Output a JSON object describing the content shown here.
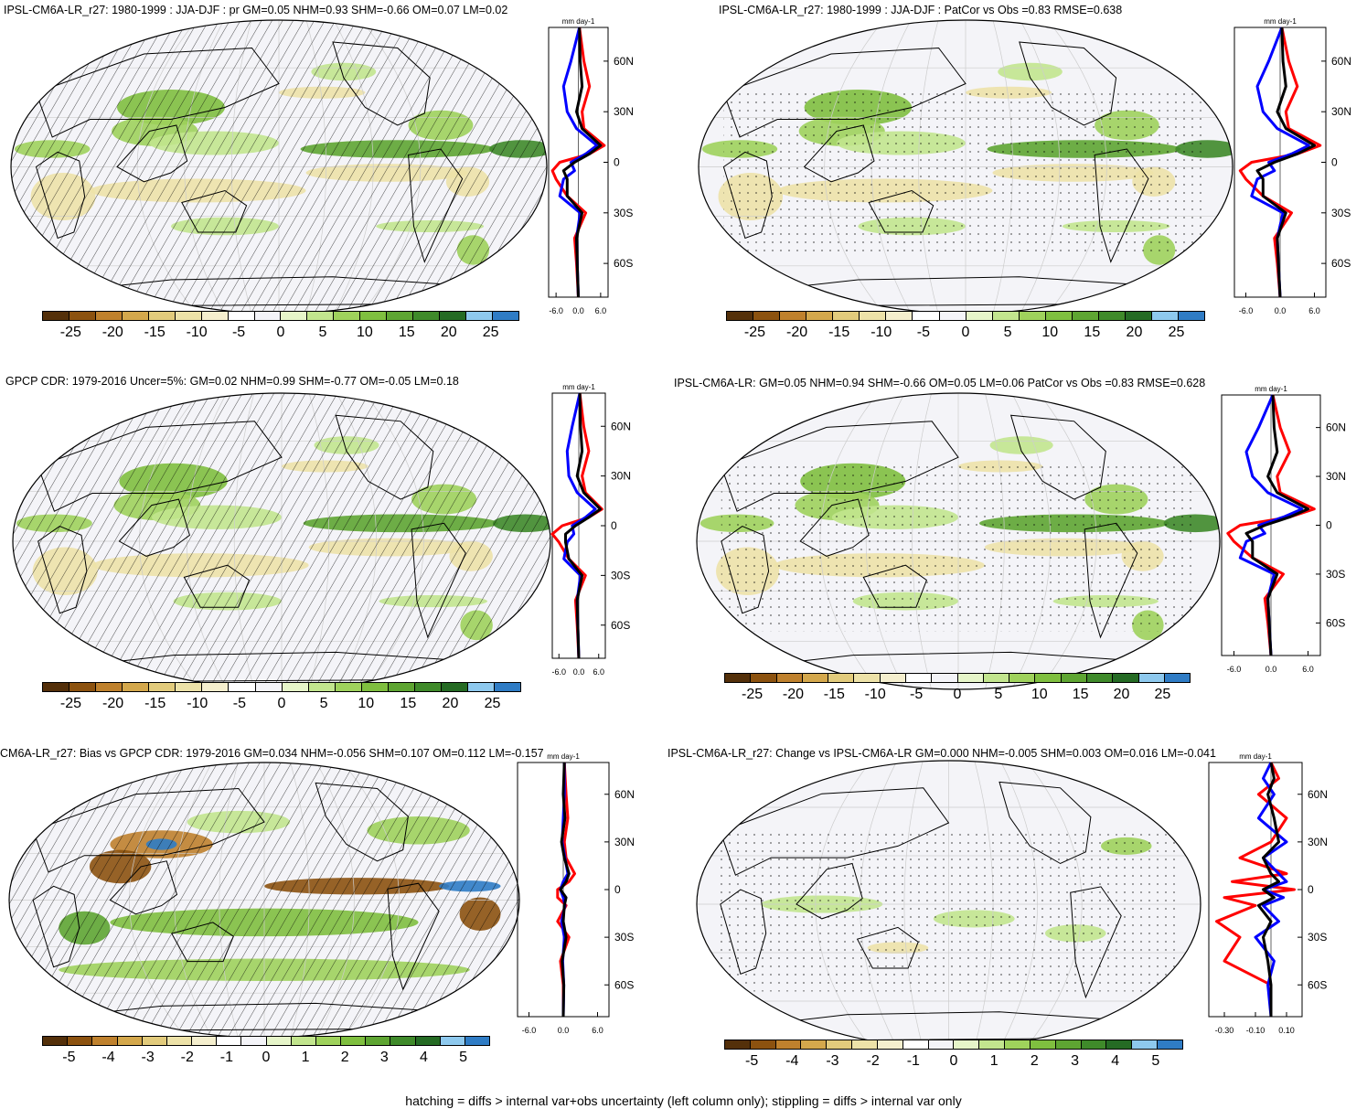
{
  "colorbar_colors": [
    "#54300a",
    "#8c520f",
    "#bf812d",
    "#d4a84c",
    "#e2cb7c",
    "#ede2a8",
    "#f5efce",
    "#ffffff",
    "#f4f4f8",
    "#e6f5c9",
    "#c2e58e",
    "#9fd25c",
    "#7fbf3f",
    "#5ea532",
    "#3f8a2a",
    "#256b24",
    "#8ec9ee",
    "#2f7cc5"
  ],
  "zonal_colors": {
    "model": "#000000",
    "obs": "#0000ff",
    "third": "#ff0000"
  },
  "footnote": "hatching = diffs > internal var+obs uncertainty (left column only); stippling = diffs > internal var only",
  "panels": [
    {
      "id": "model-hist",
      "title": "IPSL-CM6A-LR_r27: 1980-1999 : JJA-DJF : pr GM=0.05 NHM=0.93 SHM=-0.66 OM=0.07 LM=0.02",
      "hatching": true,
      "colorbar_labels": [
        "-25",
        "-20",
        "-15",
        "-10",
        "-5",
        "0",
        "5",
        "10",
        "15",
        "20",
        "25"
      ],
      "zonal": {
        "units": "mm day-1",
        "xticks": [
          "-6.0",
          "0.0",
          "6.0"
        ],
        "xlim": [
          -8,
          8
        ],
        "lat_labels": [
          "60N",
          "30N",
          "0",
          "30S",
          "60S"
        ]
      }
    },
    {
      "id": "model-patcor",
      "title": "IPSL-CM6A-LR_r27: 1980-1999 : JJA-DJF : PatCor vs Obs =0.83 RMSE=0.638",
      "hatching": false,
      "colorbar_labels": [
        "-25",
        "-20",
        "-15",
        "-10",
        "-5",
        "0",
        "5",
        "10",
        "15",
        "20",
        "25"
      ],
      "zonal": {
        "units": "mm day-1",
        "xticks": [
          "-6.0",
          "0.0",
          "6.0"
        ],
        "xlim": [
          -8,
          8
        ],
        "lat_labels": [
          "60N",
          "30N",
          "0",
          "30S",
          "60S"
        ]
      }
    },
    {
      "id": "gpcp",
      "title": "GPCP CDR: 1979-2016 Uncer=5%: GM=0.02 NHM=0.99 SHM=-0.77 OM=-0.05 LM=0.18",
      "hatching": true,
      "colorbar_labels": [
        "-25",
        "-20",
        "-15",
        "-10",
        "-5",
        "0",
        "5",
        "10",
        "15",
        "20",
        "25"
      ],
      "zonal": {
        "units": "mm day-1",
        "xticks": [
          "-6.0",
          "0.0",
          "6.0"
        ],
        "xlim": [
          -8,
          8
        ],
        "lat_labels": [
          "60N",
          "30N",
          "0",
          "30S",
          "60S"
        ]
      }
    },
    {
      "id": "ensemble",
      "title": "IPSL-CM6A-LR: GM=0.05 NHM=0.94 SHM=-0.66 OM=0.05 LM=0.06 PatCor vs Obs =0.83 RMSE=0.628",
      "hatching": false,
      "colorbar_labels": [
        "-25",
        "-20",
        "-15",
        "-10",
        "-5",
        "0",
        "5",
        "10",
        "15",
        "20",
        "25"
      ],
      "zonal": {
        "units": "mm day-1",
        "xticks": [
          "-6.0",
          "0.0",
          "6.0"
        ],
        "xlim": [
          -8,
          8
        ],
        "lat_labels": [
          "60N",
          "30N",
          "0",
          "30S",
          "60S"
        ]
      }
    },
    {
      "id": "bias",
      "title": "CM6A-LR_r27: Bias vs GPCP CDR: 1979-2016 GM=0.034 NHM=-0.056 SHM=0.107 OM=0.112 LM=-0.157",
      "hatching": true,
      "colorbar_labels": [
        "-5",
        "-4",
        "-3",
        "-2",
        "-1",
        "0",
        "1",
        "2",
        "3",
        "4",
        "5"
      ],
      "zonal": {
        "units": "mm day-1",
        "xticks": [
          "-6.0",
          "0.0",
          "6.0"
        ],
        "xlim": [
          -8,
          8
        ],
        "lat_labels": [
          "60N",
          "30N",
          "0",
          "30S",
          "60S"
        ]
      }
    },
    {
      "id": "change",
      "title": "IPSL-CM6A-LR_r27: Change vs IPSL-CM6A-LR GM=0.000 NHM=-0.005 SHM=0.003 OM=0.016 LM=-0.041",
      "hatching": false,
      "colorbar_labels": [
        "-5",
        "-4",
        "-3",
        "-2",
        "-1",
        "0",
        "1",
        "2",
        "3",
        "4",
        "5"
      ],
      "zonal": {
        "units": "mm day-1",
        "xticks": [
          "-0.30",
          "-0.10",
          "0.10"
        ],
        "xlim": [
          -0.4,
          0.2
        ],
        "lat_labels": [
          "60N",
          "30N",
          "0",
          "30S",
          "60S"
        ]
      }
    }
  ],
  "chart_data": [
    {
      "type": "line",
      "title": "IPSL-CM6A-LR_r27: 1980-1999 : JJA-DJF : pr GM=0.05 NHM=0.93 SHM=-0.66 OM=0.07 LM=0.02",
      "ylim": [
        -80,
        80
      ],
      "xlim": [
        -8,
        8
      ],
      "series": [
        {
          "lat": [
            80,
            60,
            45,
            30,
            20,
            10,
            5,
            0,
            -5,
            -10,
            -20,
            -30,
            -45,
            -60,
            -80
          ],
          "values": [
            0.3,
            0.5,
            1.0,
            -0.5,
            1.0,
            6.0,
            3.0,
            -1.0,
            -4.0,
            -3.0,
            -3.0,
            1.0,
            -0.5,
            -0.3,
            0.0
          ]
        },
        {
          "lat": [
            80,
            60,
            45,
            30,
            20,
            10,
            5,
            0,
            -5,
            -10,
            -20,
            -30,
            -45,
            -60,
            -80
          ],
          "values": [
            0.3,
            -2.0,
            -4.0,
            -3.0,
            -0.5,
            5.0,
            2.0,
            -2.0,
            -1.0,
            -4.0,
            -5.0,
            0.5,
            -0.5,
            -0.3,
            0.0
          ]
        },
        {
          "lat": [
            80,
            60,
            45,
            30,
            20,
            10,
            5,
            0,
            -5,
            -10,
            -20,
            -30,
            -45,
            -60,
            -80
          ],
          "values": [
            0.3,
            1.5,
            3.0,
            1.0,
            1.5,
            7.0,
            3.0,
            -5.0,
            -7.0,
            -6.0,
            -3.0,
            2.0,
            -1.0,
            -0.5,
            0.0
          ]
        }
      ]
    },
    {
      "type": "line",
      "title": "IPSL-CM6A-LR_r27: 1980-1999 : JJA-DJF : PatCor vs Obs =0.83 RMSE=0.638",
      "ylim": [
        -80,
        80
      ],
      "xlim": [
        -8,
        8
      ],
      "series": [
        {
          "lat": [
            80,
            60,
            45,
            30,
            20,
            10,
            5,
            0,
            -5,
            -10,
            -20,
            -30,
            -45,
            -60,
            -80
          ],
          "values": [
            0.3,
            0.5,
            1.0,
            -0.5,
            1.0,
            6.0,
            3.0,
            -1.0,
            -4.0,
            -3.0,
            -3.0,
            1.0,
            -0.5,
            -0.3,
            0.0
          ]
        },
        {
          "lat": [
            80,
            60,
            45,
            30,
            20,
            10,
            5,
            0,
            -5,
            -10,
            -20,
            -30,
            -45,
            -60,
            -80
          ],
          "values": [
            0.3,
            -2.0,
            -4.0,
            -3.0,
            -0.5,
            5.0,
            2.0,
            -2.0,
            -1.0,
            -4.0,
            -5.0,
            0.5,
            -0.5,
            -0.3,
            0.0
          ]
        },
        {
          "lat": [
            80,
            60,
            45,
            30,
            20,
            10,
            5,
            0,
            -5,
            -10,
            -20,
            -30,
            -45,
            -60,
            -80
          ],
          "values": [
            0.3,
            1.5,
            3.0,
            1.0,
            1.5,
            7.0,
            3.0,
            -5.0,
            -7.0,
            -6.0,
            -3.0,
            2.0,
            -1.0,
            -0.5,
            0.0
          ]
        }
      ]
    },
    {
      "type": "line",
      "title": "GPCP CDR: 1979-2016 Uncer=5%: GM=0.02 NHM=0.99 SHM=-0.77 OM=-0.05 LM=0.18",
      "ylim": [
        -80,
        80
      ],
      "xlim": [
        -8,
        8
      ],
      "series": [
        {
          "lat": [
            80,
            60,
            45,
            30,
            20,
            10,
            5,
            0,
            -5,
            -10,
            -20,
            -30,
            -45,
            -60,
            -80
          ],
          "values": [
            0.3,
            0.5,
            1.0,
            -0.5,
            1.5,
            6.5,
            3.0,
            -1.0,
            -4.0,
            -4.0,
            -3.0,
            1.0,
            -0.5,
            -0.3,
            0.0
          ]
        },
        {
          "lat": [
            80,
            60,
            45,
            30,
            20,
            10,
            5,
            0,
            -5,
            -10,
            -20,
            -30,
            -45,
            -60,
            -80
          ],
          "values": [
            0.3,
            -2.0,
            -3.5,
            -3.0,
            -0.5,
            5.0,
            2.0,
            -2.0,
            -1.5,
            -3.5,
            -4.5,
            0.5,
            -0.5,
            -0.3,
            0.0
          ]
        },
        {
          "lat": [
            80,
            60,
            45,
            30,
            20,
            10,
            5,
            0,
            -5,
            -10,
            -20,
            -30,
            -45,
            -60,
            -80
          ],
          "values": [
            0.3,
            1.5,
            3.0,
            1.0,
            2.0,
            7.0,
            3.0,
            -5.0,
            -8.0,
            -6.0,
            -3.0,
            2.0,
            -1.0,
            -0.5,
            0.0
          ]
        }
      ]
    },
    {
      "type": "line",
      "title": "IPSL-CM6A-LR: GM=0.05 NHM=0.94 SHM=-0.66 OM=0.05 LM=0.06 PatCor vs Obs =0.83 RMSE=0.628",
      "ylim": [
        -80,
        80
      ],
      "xlim": [
        -8,
        8
      ],
      "series": [
        {
          "lat": [
            80,
            60,
            45,
            30,
            20,
            10,
            5,
            0,
            -5,
            -10,
            -20,
            -30,
            -45,
            -60,
            -80
          ],
          "values": [
            0.3,
            0.5,
            1.0,
            -0.5,
            1.0,
            6.0,
            3.0,
            -1.0,
            -4.0,
            -3.0,
            -3.0,
            1.0,
            -0.5,
            -0.3,
            0.0
          ]
        },
        {
          "lat": [
            80,
            60,
            45,
            30,
            20,
            10,
            5,
            0,
            -5,
            -10,
            -20,
            -30,
            -45,
            -60,
            -80
          ],
          "values": [
            0.3,
            -2.0,
            -4.0,
            -3.0,
            -0.5,
            5.0,
            2.0,
            -2.0,
            -1.0,
            -4.0,
            -5.0,
            0.5,
            -0.5,
            -0.3,
            0.0
          ]
        },
        {
          "lat": [
            80,
            60,
            45,
            30,
            20,
            10,
            5,
            0,
            -5,
            -10,
            -20,
            -30,
            -45,
            -60,
            -80
          ],
          "values": [
            0.3,
            1.5,
            3.0,
            1.0,
            1.5,
            7.0,
            3.0,
            -5.0,
            -7.0,
            -6.0,
            -3.0,
            2.0,
            -1.0,
            -0.5,
            0.0
          ]
        }
      ]
    },
    {
      "type": "line",
      "title": "CM6A-LR_r27: Bias vs GPCP CDR: 1979-2016 GM=0.034 NHM=-0.056 SHM=0.107 OM=0.112 LM=-0.157",
      "ylim": [
        -80,
        80
      ],
      "xlim": [
        -8,
        8
      ],
      "series": [
        {
          "lat": [
            80,
            60,
            45,
            30,
            20,
            10,
            5,
            0,
            -5,
            -10,
            -20,
            -30,
            -45,
            -60,
            -80
          ],
          "values": [
            0.2,
            0.0,
            0.3,
            -0.3,
            0.2,
            1.0,
            0.5,
            -0.5,
            0.5,
            0.2,
            0.0,
            0.5,
            -0.2,
            0.1,
            0.0
          ]
        },
        {
          "lat": [
            80,
            60,
            45,
            30,
            20,
            10,
            5,
            0,
            -5,
            -10,
            -20,
            -30,
            -45,
            -60,
            -80
          ],
          "values": [
            0.2,
            0.2,
            0.0,
            -0.2,
            0.3,
            0.8,
            0.0,
            -0.5,
            0.0,
            0.3,
            -0.3,
            0.2,
            -0.1,
            0.1,
            0.0
          ]
        },
        {
          "lat": [
            80,
            60,
            45,
            30,
            20,
            10,
            5,
            0,
            -5,
            -10,
            -20,
            -30,
            -45,
            -60,
            -80
          ],
          "values": [
            0.2,
            0.5,
            0.8,
            0.2,
            0.5,
            2.0,
            1.0,
            -1.0,
            -1.0,
            0.5,
            -1.0,
            1.0,
            -0.5,
            0.0,
            0.0
          ]
        }
      ]
    },
    {
      "type": "line",
      "title": "IPSL-CM6A-LR_r27: Change vs IPSL-CM6A-LR GM=0.000 NHM=-0.005 SHM=0.003 OM=0.016 LM=-0.041",
      "ylim": [
        -80,
        80
      ],
      "xlim": [
        -0.4,
        0.2
      ],
      "series": [
        {
          "lat": [
            80,
            70,
            60,
            45,
            30,
            20,
            10,
            5,
            0,
            -5,
            -10,
            -20,
            -30,
            -45,
            -60,
            -80
          ],
          "values": [
            0.0,
            0.02,
            -0.02,
            0.02,
            0.05,
            -0.05,
            0.0,
            0.05,
            -0.05,
            0.02,
            -0.08,
            0.0,
            -0.05,
            -0.02,
            0.0,
            0.0
          ]
        },
        {
          "lat": [
            80,
            70,
            60,
            45,
            30,
            20,
            10,
            5,
            0,
            -5,
            -10,
            -20,
            -30,
            -45,
            -60,
            -80
          ],
          "values": [
            0.0,
            -0.05,
            0.02,
            -0.08,
            0.1,
            -0.05,
            0.05,
            0.1,
            -0.05,
            0.08,
            -0.05,
            0.05,
            -0.1,
            0.02,
            -0.02,
            0.0
          ]
        },
        {
          "lat": [
            80,
            70,
            60,
            45,
            30,
            20,
            10,
            5,
            0,
            -5,
            -10,
            -20,
            -30,
            -45,
            -60,
            -80
          ],
          "values": [
            0.0,
            0.05,
            -0.08,
            0.1,
            0.0,
            -0.2,
            0.1,
            -0.25,
            0.15,
            -0.3,
            -0.1,
            -0.35,
            -0.2,
            -0.3,
            0.0,
            0.0
          ]
        }
      ]
    }
  ]
}
